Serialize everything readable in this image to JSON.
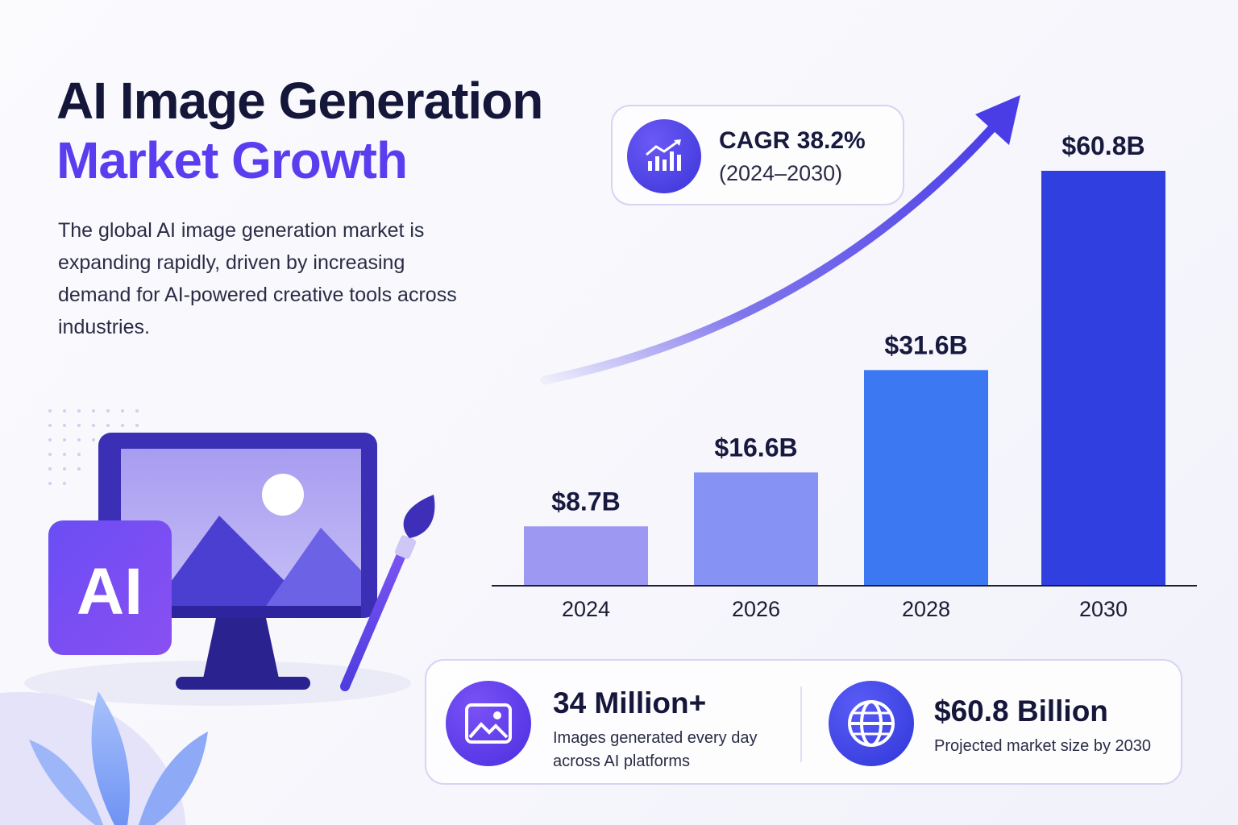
{
  "title_line1": "AI Image Generation",
  "title_line2": "Market Growth",
  "description": "The global AI image generation market is expanding rapidly, driven by increasing demand for AI-powered creative tools across industries.",
  "illustration": {
    "badge_text": "AI",
    "icons": [
      "monitor-landscape-icon",
      "paintbrush-icon",
      "leaf-icon"
    ]
  },
  "cagr": {
    "value": "CAGR 38.2%",
    "period": "(2024–2030)",
    "icon": "growth-chart-icon"
  },
  "colors": {
    "accent": "#5b3df0",
    "bar_2024": "#9d98f2",
    "bar_2026": "#8693f4",
    "bar_2028": "#3c78f2",
    "bar_2030": "#2f3fe0",
    "trend_arrow": "#4b3de6"
  },
  "chart_data": {
    "type": "bar",
    "categories": [
      "2024",
      "2026",
      "2028",
      "2030"
    ],
    "values": [
      8.7,
      16.6,
      31.6,
      60.8
    ],
    "data_labels": [
      "$8.7B",
      "$16.6B",
      "$31.6B",
      "$60.8B"
    ],
    "unit": "B USD",
    "title": "",
    "xlabel": "",
    "ylabel": "",
    "ylim": [
      0,
      60.8
    ],
    "grid": false,
    "annotation": "upward trend arrow"
  },
  "stats": [
    {
      "headline": "34 Million+",
      "subtext_line1": "Images generated every day",
      "subtext_line2": "across AI platforms",
      "icon": "image-icon"
    },
    {
      "headline": "$60.8 Billion",
      "subtext_line1": "Projected market size by 2030",
      "icon": "globe-icon"
    }
  ]
}
